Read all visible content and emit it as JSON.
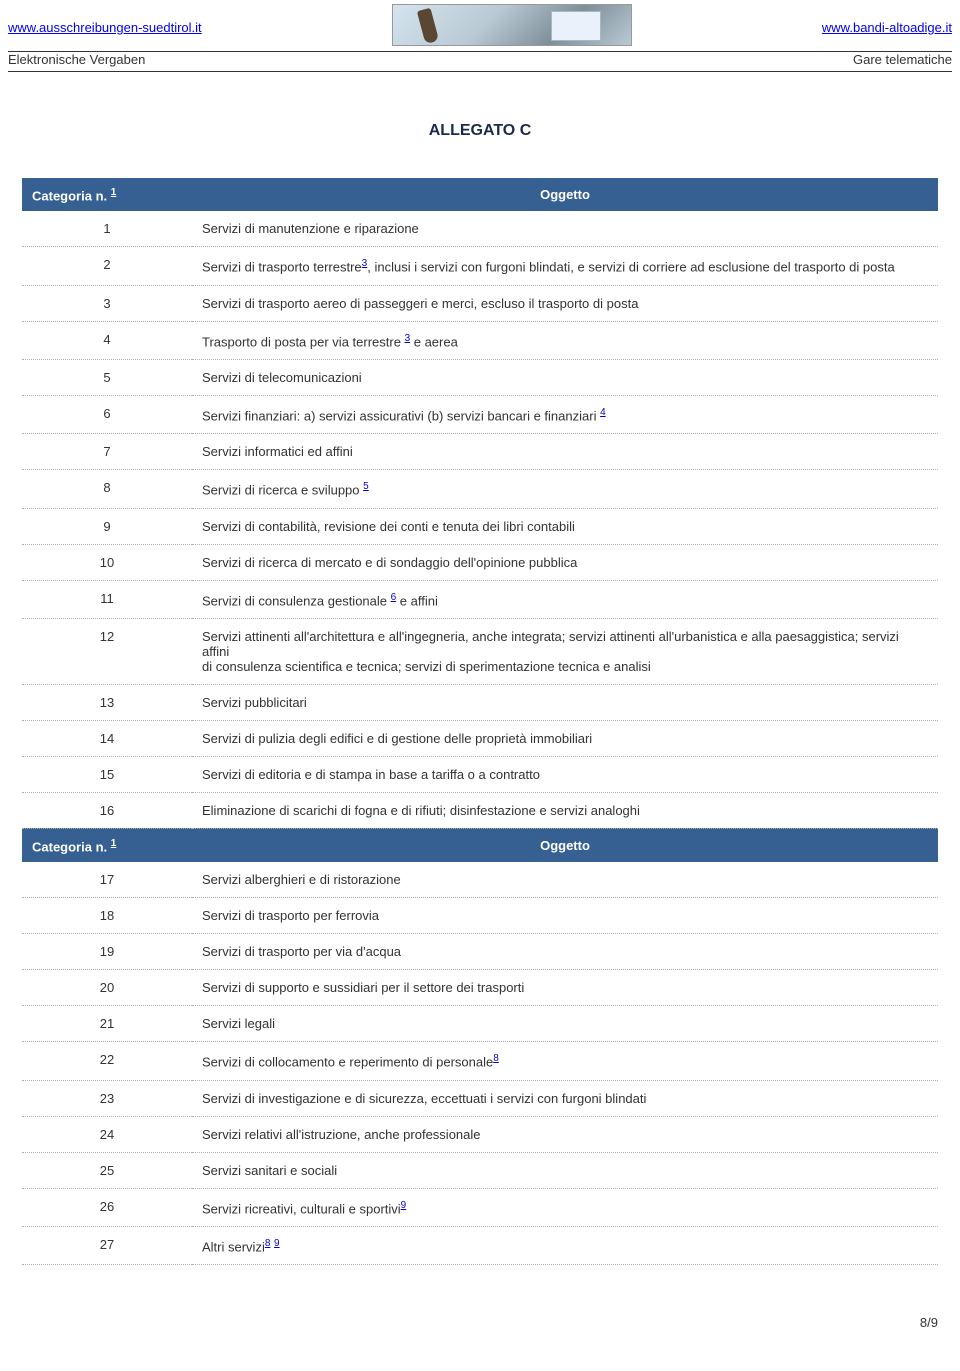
{
  "header": {
    "left_url": "www.ausschreibungen-suedtirol.it",
    "right_url": "www.bandi-altoadige.it",
    "left_sub": "Elektronische Vergaben",
    "right_sub": "Gare telematiche"
  },
  "title": "ALLEGATO C",
  "columns": {
    "category_label": "Categoria n.",
    "category_sup": "1",
    "object_label": "Oggetto"
  },
  "rows1": [
    {
      "n": "1",
      "text": "Servizi di manutenzione e riparazione"
    },
    {
      "n": "2",
      "pre": "Servizi di trasporto terrestre",
      "sup": "3",
      "post": ", inclusi i servizi con furgoni blindati, e servizi di corriere ad esclusione del trasporto di posta"
    },
    {
      "n": "3",
      "text": "Servizi di trasporto aereo di passeggeri e merci, escluso il trasporto di posta"
    },
    {
      "n": "4",
      "pre": "Trasporto di posta per via terrestre ",
      "sup": "3",
      "post": " e aerea"
    },
    {
      "n": "5",
      "text": "Servizi di telecomunicazioni"
    },
    {
      "n": "6",
      "pre": "Servizi finanziari: a) servizi assicurativi (b) servizi bancari e finanziari ",
      "sup": "4",
      "post": ""
    },
    {
      "n": "7",
      "text": "Servizi informatici ed affini"
    },
    {
      "n": "8",
      "pre": "Servizi di ricerca e sviluppo ",
      "sup": "5",
      "post": ""
    },
    {
      "n": "9",
      "text": "Servizi di contabilità, revisione dei conti e tenuta dei libri contabili"
    },
    {
      "n": "10",
      "text": "Servizi di ricerca di mercato e di sondaggio dell'opinione pubblica"
    },
    {
      "n": "11",
      "pre": "Servizi di consulenza gestionale ",
      "sup": "6",
      "post": " e affini"
    },
    {
      "n": "12",
      "text": "Servizi attinenti all'architettura e all'ingegneria, anche integrata; servizi attinenti all'urbanistica e alla paesaggistica; servizi affini\ndi consulenza scientifica e tecnica; servizi di sperimentazione tecnica e analisi"
    },
    {
      "n": "13",
      "text": "Servizi pubblicitari"
    },
    {
      "n": "14",
      "text": "Servizi di pulizia degli edifici e di gestione delle proprietà immobiliari"
    },
    {
      "n": "15",
      "text": "Servizi di editoria e di stampa in base a tariffa o a contratto"
    },
    {
      "n": "16",
      "text": "Eliminazione di scarichi di fogna e di rifiuti; disinfestazione e servizi analoghi"
    }
  ],
  "rows2": [
    {
      "n": "17",
      "text": "Servizi alberghieri e di ristorazione"
    },
    {
      "n": "18",
      "text": "Servizi di trasporto per ferrovia"
    },
    {
      "n": "19",
      "text": "Servizi di trasporto per via d'acqua"
    },
    {
      "n": "20",
      "text": "Servizi di supporto e sussidiari per il settore dei trasporti"
    },
    {
      "n": "21",
      "text": "Servizi legali"
    },
    {
      "n": "22",
      "pre": "Servizi di collocamento e reperimento di personale",
      "sup": "8",
      "post": ""
    },
    {
      "n": "23",
      "text": "Servizi di investigazione e di sicurezza, eccettuati i servizi con furgoni blindati"
    },
    {
      "n": "24",
      "text": "Servizi relativi all'istruzione, anche professionale"
    },
    {
      "n": "25",
      "text": "Servizi sanitari e sociali"
    },
    {
      "n": "26",
      "pre": "Servizi ricreativi, culturali e sportivi",
      "sup": "9",
      "post": ""
    },
    {
      "n": "27",
      "pre": "Altri servizi",
      "sup": "8",
      "sup2": "9",
      "post": ""
    }
  ],
  "page_number": "8/9"
}
